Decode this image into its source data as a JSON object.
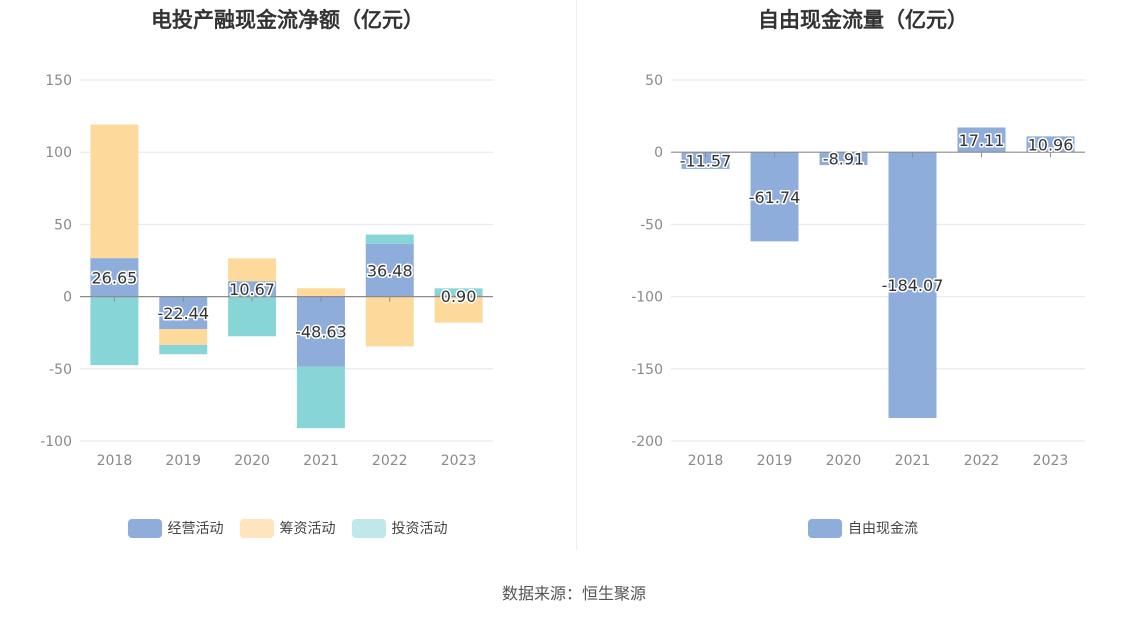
{
  "footer": {
    "source": "数据来源：恒生聚源"
  },
  "chart_data": [
    {
      "type": "bar",
      "stacked": true,
      "title": "电投产融现金流净额（亿元）",
      "categories": [
        "2018",
        "2019",
        "2020",
        "2021",
        "2022",
        "2023"
      ],
      "ylim": [
        -100,
        150
      ],
      "yticks": [
        "150",
        "100",
        "50",
        "0",
        "-50",
        "-100"
      ],
      "grid": true,
      "legend_position": "bottom",
      "series": [
        {
          "name": "经营活动",
          "color": "#8eaddb",
          "values": [
            26.65,
            -22.44,
            10.67,
            -48.63,
            36.48,
            0.9
          ]
        },
        {
          "name": "筹资活动",
          "color": "#fed99c",
          "values": [
            92.5,
            -11.0,
            15.8,
            5.8,
            -34.5,
            -18.0
          ]
        },
        {
          "name": "投资活动",
          "color": "#88d5d8",
          "values": [
            -47.5,
            -6.5,
            -27.5,
            -42.5,
            6.5,
            4.8
          ]
        }
      ],
      "data_labels": [
        "26.65",
        "-22.44",
        "10.67",
        "-48.63",
        "36.48",
        "0.90"
      ]
    },
    {
      "type": "bar",
      "title": "自由现金流量（亿元）",
      "categories": [
        "2018",
        "2019",
        "2020",
        "2021",
        "2022",
        "2023"
      ],
      "ylim": [
        -200,
        50
      ],
      "yticks": [
        "50",
        "0",
        "-50",
        "-100",
        "-150",
        "-200"
      ],
      "grid": true,
      "legend_position": "bottom",
      "series": [
        {
          "name": "自由现金流",
          "color": "#8eaddb",
          "values": [
            -11.57,
            -61.74,
            -8.91,
            -184.07,
            17.11,
            10.96
          ]
        }
      ],
      "data_labels": [
        "-11.57",
        "-61.74",
        "-8.91",
        "-184.07",
        "17.11",
        "10.96"
      ]
    }
  ]
}
